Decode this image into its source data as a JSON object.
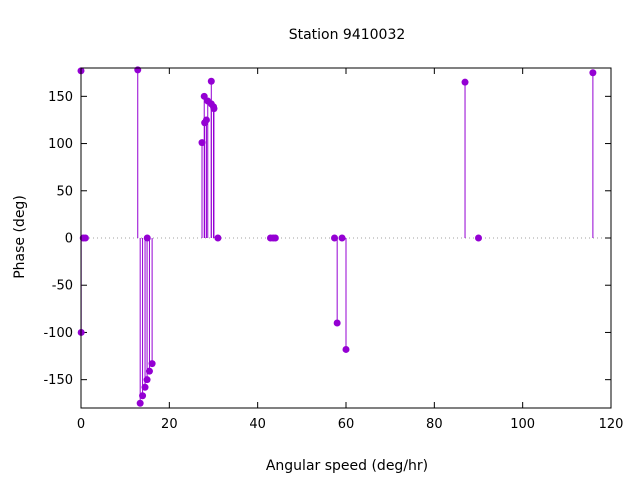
{
  "chart_data": {
    "type": "scatter",
    "style": "impulse",
    "title": "Station 9410032",
    "xlabel": "Angular speed (deg/hr)",
    "ylabel": "Phase (deg)",
    "xlim": [
      0,
      120
    ],
    "ylim": [
      -180,
      180
    ],
    "xticks": [
      0,
      20,
      40,
      60,
      80,
      100,
      120
    ],
    "yticks": [
      -150,
      -100,
      -50,
      0,
      50,
      100,
      150
    ],
    "zero_line": "dotted",
    "grid": false,
    "legend": "none",
    "color": "#9400d3",
    "points": [
      {
        "x": 0.0,
        "y": 177
      },
      {
        "x": 0.04,
        "y": -100
      },
      {
        "x": 0.5,
        "y": 0
      },
      {
        "x": 1.0,
        "y": 0
      },
      {
        "x": 12.85,
        "y": 178
      },
      {
        "x": 13.4,
        "y": -175
      },
      {
        "x": 13.94,
        "y": -167
      },
      {
        "x": 14.5,
        "y": -158
      },
      {
        "x": 14.96,
        "y": -150
      },
      {
        "x": 15.0,
        "y": 0
      },
      {
        "x": 15.5,
        "y": -141
      },
      {
        "x": 16.1,
        "y": -133
      },
      {
        "x": 27.4,
        "y": 101
      },
      {
        "x": 27.9,
        "y": 150
      },
      {
        "x": 28.0,
        "y": 122
      },
      {
        "x": 28.4,
        "y": 125
      },
      {
        "x": 28.7,
        "y": 145
      },
      {
        "x": 29.5,
        "y": 166
      },
      {
        "x": 29.5,
        "y": 142
      },
      {
        "x": 30.0,
        "y": 139
      },
      {
        "x": 30.1,
        "y": 137
      },
      {
        "x": 31.0,
        "y": 0
      },
      {
        "x": 42.9,
        "y": 0
      },
      {
        "x": 43.5,
        "y": 0
      },
      {
        "x": 44.0,
        "y": 0
      },
      {
        "x": 57.4,
        "y": 0
      },
      {
        "x": 58.0,
        "y": -90
      },
      {
        "x": 59.1,
        "y": 0
      },
      {
        "x": 60.0,
        "y": -118
      },
      {
        "x": 86.95,
        "y": 165
      },
      {
        "x": 90.0,
        "y": 0
      },
      {
        "x": 115.9,
        "y": 175
      }
    ]
  }
}
